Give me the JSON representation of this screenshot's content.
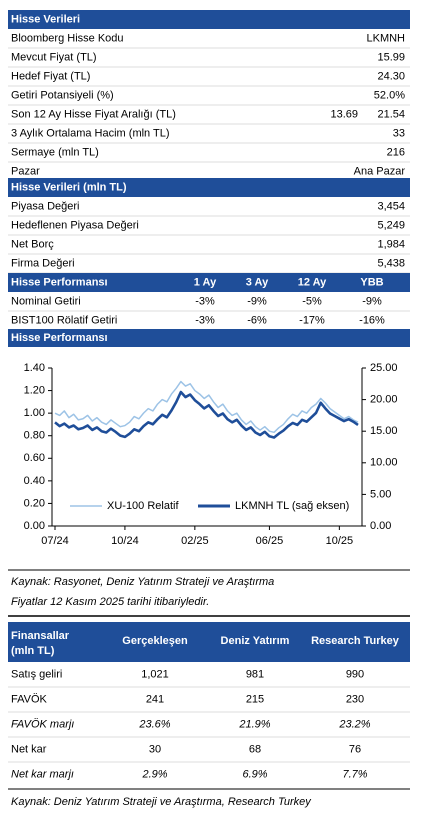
{
  "stock_data": {
    "title": "Hisse Verileri",
    "rows": [
      [
        "Bloomberg Hisse Kodu",
        "LKMNH"
      ],
      [
        "Mevcut Fiyat (TL)",
        "15.99"
      ],
      [
        "Hedef Fiyat (TL)",
        "24.30"
      ],
      [
        "Getiri Potansiyeli (%)",
        "52.0%"
      ],
      [
        "Son 12 Ay Hisse Fiyat Aralığı (TL)",
        "13.69",
        "21.54"
      ],
      [
        "3 Aylık Ortalama Hacim (mln TL)",
        "33"
      ],
      [
        "Sermaye (mln TL)",
        "216"
      ],
      [
        "Pazar",
        "Ana Pazar"
      ]
    ]
  },
  "market_data": {
    "title": "Hisse Verileri (mln TL)",
    "rows": [
      [
        "Piyasa Değeri",
        "3,454"
      ],
      [
        "Hedeflenen Piyasa Değeri",
        "5,249"
      ],
      [
        "Net Borç",
        "1,984"
      ],
      [
        "Firma Değeri",
        "5,438"
      ]
    ]
  },
  "performance": {
    "title": "Hisse Performansı",
    "columns": [
      "1 Ay",
      "3 Ay",
      "12 Ay",
      "YBB"
    ],
    "rows": [
      [
        "Nominal Getiri",
        "-3%",
        "-9%",
        "-5%",
        "-9%"
      ],
      [
        "BIST100 Rölatif Getiri",
        "-3%",
        "-6%",
        "-17%",
        "-16%"
      ]
    ]
  },
  "chart_section_title": "Hisse Performansı",
  "chart_data": {
    "type": "line",
    "categories": [
      "07/24",
      null,
      null,
      null,
      null,
      null,
      null,
      null,
      null,
      null,
      null,
      null,
      null,
      null,
      null,
      "10/24",
      null,
      null,
      null,
      null,
      null,
      null,
      null,
      null,
      null,
      null,
      null,
      null,
      null,
      null,
      "02/25",
      null,
      null,
      null,
      null,
      null,
      null,
      null,
      null,
      null,
      null,
      null,
      null,
      null,
      null,
      null,
      "06/25",
      null,
      null,
      null,
      null,
      null,
      null,
      null,
      null,
      null,
      null,
      null,
      null,
      null,
      null,
      "10/25",
      null,
      null,
      null,
      null
    ],
    "ylim": [
      0,
      1.4
    ],
    "yticks": [
      {
        "value": 0,
        "label": "0.00"
      },
      {
        "value": 0.2,
        "label": "0.20"
      },
      {
        "value": 0.4,
        "label": "0.40"
      },
      {
        "value": 0.6,
        "label": "0.60"
      },
      {
        "value": 0.8,
        "label": "0.80"
      },
      {
        "value": 1,
        "label": "1.00"
      },
      {
        "value": 1.2,
        "label": "1.20"
      },
      {
        "value": 1.4,
        "label": "1.40"
      }
    ],
    "y2lim": [
      0,
      25
    ],
    "y2ticks": [
      {
        "value": 0,
        "label": "0.00"
      },
      {
        "value": 5,
        "label": "5.00"
      },
      {
        "value": 10,
        "label": "10.00"
      },
      {
        "value": 15,
        "label": "15.00"
      },
      {
        "value": 20,
        "label": "20.00"
      },
      {
        "value": 25,
        "label": "25.00"
      }
    ],
    "legend": "bottom",
    "series": [
      {
        "name": "XU-100 Relatif",
        "color": "#9dc3e6",
        "values": [
          1.0,
          0.98,
          1.02,
          0.96,
          0.99,
          0.94,
          0.95,
          0.98,
          0.93,
          0.96,
          0.92,
          0.9,
          0.94,
          0.91,
          0.88,
          0.89,
          0.92,
          0.97,
          0.95,
          1.0,
          1.04,
          1.02,
          1.08,
          1.12,
          1.1,
          1.17,
          1.22,
          1.28,
          1.24,
          1.26,
          1.2,
          1.17,
          1.13,
          1.16,
          1.1,
          1.05,
          1.08,
          1.02,
          0.98,
          1.0,
          0.94,
          0.9,
          0.93,
          0.88,
          0.85,
          0.88,
          0.84,
          0.83,
          0.87,
          0.9,
          0.95,
          0.99,
          0.97,
          1.02,
          1.0,
          1.05,
          1.08,
          1.13,
          1.09,
          1.04,
          1.01,
          0.98,
          0.95,
          0.97,
          0.94,
          0.92
        ]
      },
      {
        "name": "LKMNH TL (sağ eksen)",
        "color": "#1f4e99",
        "axis": "y2",
        "values": [
          16.4,
          15.8,
          16.2,
          15.6,
          15.9,
          15.3,
          15.5,
          15.9,
          15.2,
          15.6,
          15.0,
          14.8,
          15.4,
          14.9,
          14.3,
          14.1,
          14.6,
          15.3,
          15.0,
          15.8,
          16.4,
          16.1,
          16.9,
          17.6,
          17.2,
          18.3,
          19.6,
          21.2,
          20.4,
          20.8,
          19.9,
          19.3,
          18.6,
          19.1,
          18.2,
          17.4,
          17.8,
          16.9,
          16.4,
          16.8,
          15.9,
          15.2,
          15.6,
          14.8,
          14.4,
          14.9,
          14.2,
          14.0,
          14.6,
          15.1,
          15.8,
          16.3,
          16.0,
          16.8,
          16.5,
          17.2,
          17.9,
          19.5,
          18.6,
          17.8,
          17.4,
          17.0,
          16.6,
          16.9,
          16.5,
          15.99
        ]
      }
    ]
  },
  "source_1": [
    "Kaynak: Rasyonet, Deniz Yatırım Strateji ve Araştırma",
    "Fiyatlar 12 Kasım 2025 tarihi itibariyledir."
  ],
  "financials": {
    "title": [
      "Finansallar",
      "(mln TL)"
    ],
    "columns": [
      "Gerçekleşen",
      "Deniz Yatırım",
      "Research Turkey"
    ],
    "rows": [
      {
        "label": "Satış geliri",
        "values": [
          "1,021",
          "981",
          "990"
        ],
        "italic": false
      },
      {
        "label": "FAVÖK",
        "values": [
          "241",
          "215",
          "230"
        ],
        "italic": false
      },
      {
        "label": "FAVÖK marjı",
        "values": [
          "23.6%",
          "21.9%",
          "23.2%"
        ],
        "italic": true
      },
      {
        "label": "Net kar",
        "values": [
          "30",
          "68",
          "76"
        ],
        "italic": false
      },
      {
        "label": "Net kar marjı",
        "values": [
          "2.9%",
          "6.9%",
          "7.7%"
        ],
        "italic": true
      }
    ]
  },
  "source_2": "Kaynak: Deniz Yatırım Strateji ve Araştırma, Research Turkey"
}
